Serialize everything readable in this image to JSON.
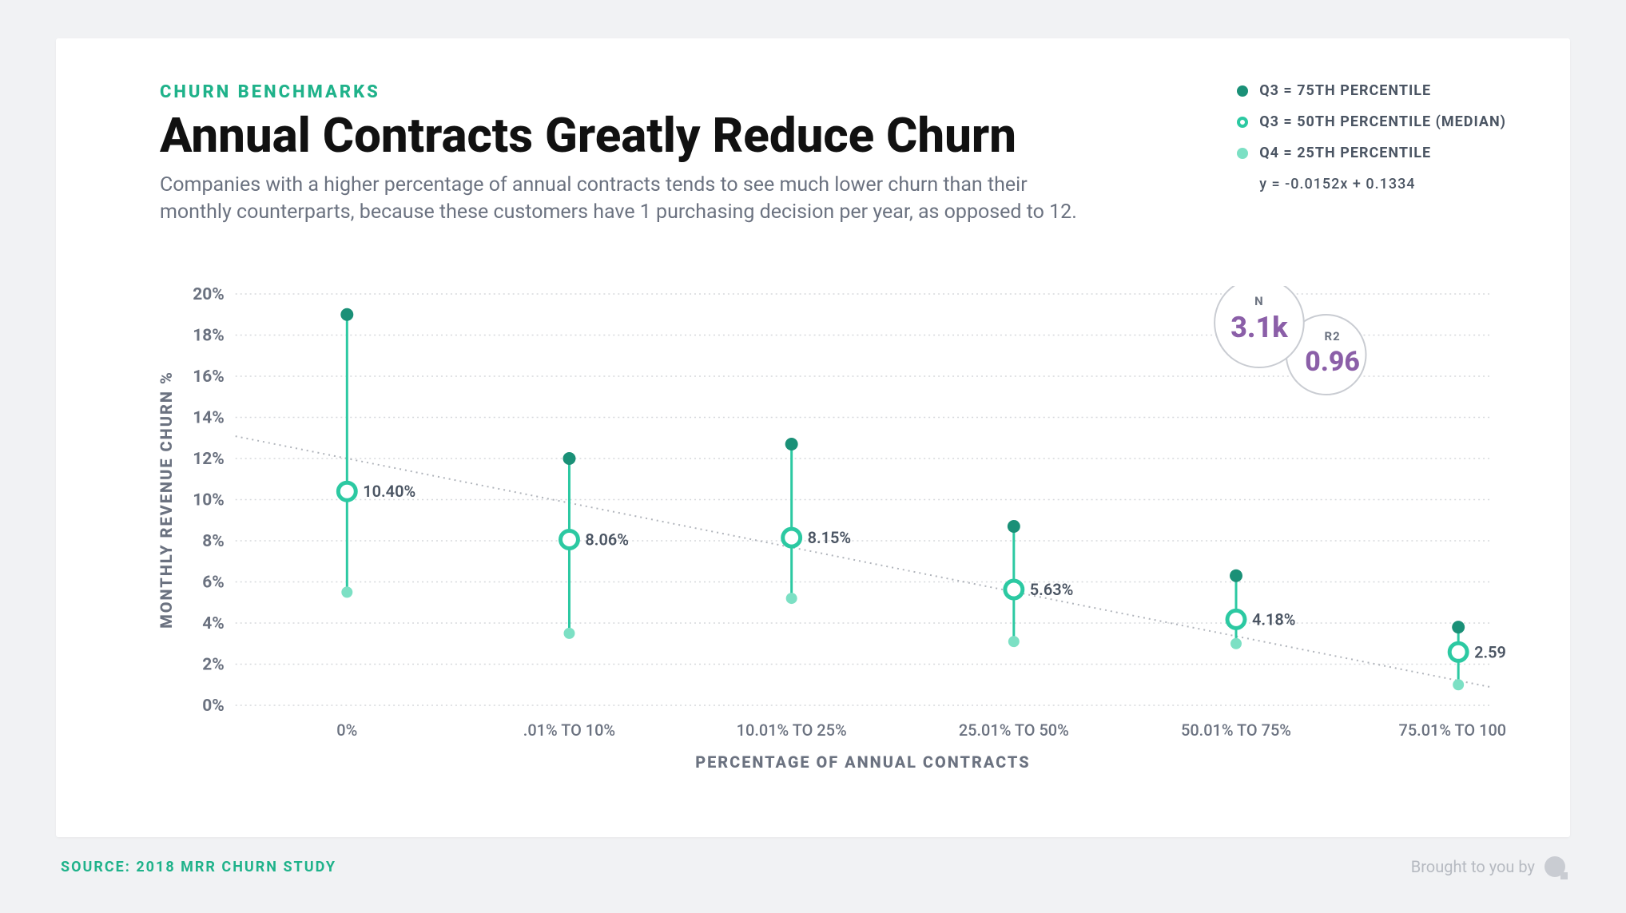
{
  "page_background": "#f1f2f4",
  "card_background": "#ffffff",
  "kicker": "CHURN BENCHMARKS",
  "title": "Annual Contracts Greatly Reduce Churn",
  "subtitle": "Companies with a higher percentage of annual contracts tends to see much lower churn than their monthly counterparts, because these customers have 1 purchasing decision per year, as opposed to 12.",
  "legend": {
    "q3": {
      "label": "Q3 = 75TH PERCENTILE",
      "color": "#1a9077"
    },
    "median": {
      "label": "Q3 = 50TH PERCENTILE (MEDIAN)",
      "color": "#2cc9a2"
    },
    "q1": {
      "label": "Q4 = 25TH PERCENTILE",
      "color": "#7ce0c4"
    },
    "equation": "y = -0.0152x + 0.1334"
  },
  "stats": {
    "n": {
      "label": "N",
      "value": "3.1k"
    },
    "r2": {
      "label": "R2",
      "value": "0.96"
    },
    "value_color": "#8b5fa8"
  },
  "chart": {
    "type": "range-dot",
    "ylabel": "MONTHLY REVENUE CHURN %",
    "xlabel": "PERCENTAGE OF ANNUAL CONTRACTS",
    "ylim": [
      0,
      20
    ],
    "ytick_step": 2,
    "ytick_suffix": "%",
    "grid_color": "#d6d8dc",
    "trend_color": "#b0b4bb",
    "background_color": "#ffffff",
    "colors": {
      "q3": "#1a9077",
      "median_ring": "#2cc9a2",
      "q1": "#7ce0c4",
      "stem": "#2cc9a2"
    },
    "marker": {
      "q3_radius": 8,
      "q1_radius": 7,
      "median_outer": 11,
      "median_stroke": 5,
      "stem_width": 3
    },
    "categories": [
      "0%",
      ".01% TO 10%",
      "10.01% TO 25%",
      "25.01% TO 50%",
      "50.01% TO 75%",
      "75.01% TO 100%"
    ],
    "series": [
      {
        "q1": 5.5,
        "median": 10.4,
        "q3": 19.0,
        "label": "10.40%"
      },
      {
        "q1": 3.5,
        "median": 8.06,
        "q3": 12.0,
        "label": "8.06%"
      },
      {
        "q1": 5.2,
        "median": 8.15,
        "q3": 12.7,
        "label": "8.15%"
      },
      {
        "q1": 3.1,
        "median": 5.63,
        "q3": 8.7,
        "label": "5.63%"
      },
      {
        "q1": 3.0,
        "median": 4.18,
        "q3": 6.3,
        "label": "4.18%"
      },
      {
        "q1": 1.0,
        "median": 2.59,
        "q3": 3.8,
        "label": "2.59%"
      }
    ],
    "trend": {
      "y_at_first": 12.0,
      "y_at_last": 1.2
    }
  },
  "footer": {
    "source": "SOURCE: 2018 MRR CHURN STUDY",
    "brought": "Brought to you by"
  }
}
